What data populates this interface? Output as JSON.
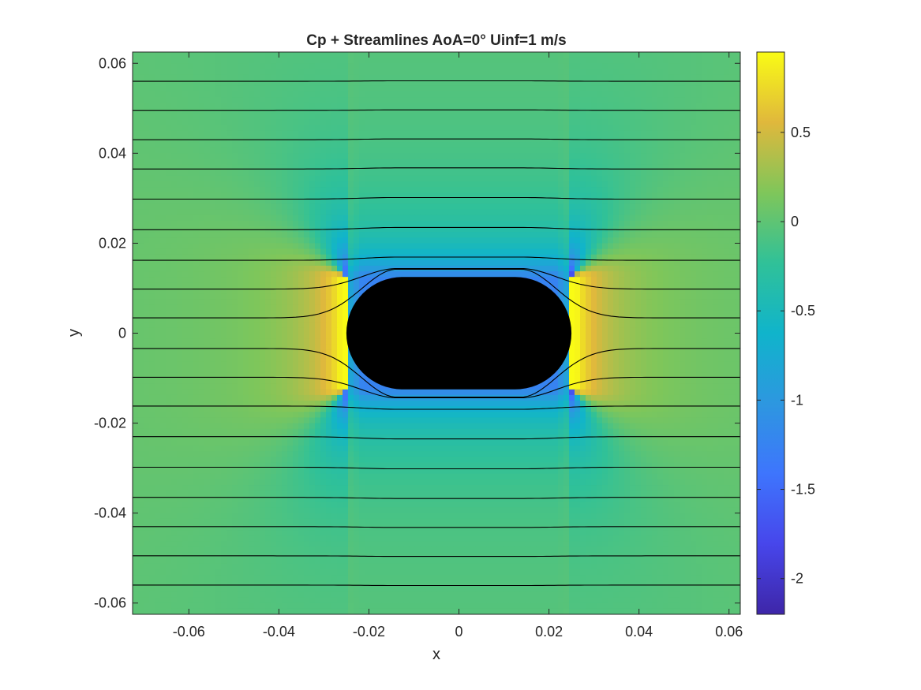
{
  "chart_data": {
    "type": "heatmap",
    "title": "Cp + Streamlines AoA=0° Uinf=1 m/s",
    "xlabel": "x",
    "ylabel": "y",
    "xlim": [
      -0.0725,
      0.0625
    ],
    "ylim": [
      -0.0625,
      0.0625
    ],
    "x_ticks": [
      -0.06,
      -0.04,
      -0.02,
      0,
      0.02,
      0.04,
      0.06
    ],
    "x_tick_labels": [
      "-0.06",
      "-0.04",
      "-0.02",
      "0",
      "0.02",
      "0.04",
      "0.06"
    ],
    "y_ticks": [
      -0.06,
      -0.04,
      -0.02,
      0,
      0.02,
      0.04,
      0.06
    ],
    "y_tick_labels": [
      "-0.06",
      "-0.04",
      "-0.02",
      "0",
      "0.02",
      "0.04",
      "0.06"
    ],
    "colorbar": {
      "limits": [
        -2.2,
        0.95
      ],
      "ticks": [
        -2,
        -1.5,
        -1,
        -0.5,
        0,
        0.5
      ],
      "tick_labels": [
        "-2",
        "-1.5",
        "-1",
        "-0.5",
        "0",
        "0.5"
      ],
      "colormap": "parula"
    },
    "body": {
      "shape": "rounded-rectangle",
      "x_range": [
        -0.025,
        0.025
      ],
      "y_range": [
        -0.0125,
        0.0125
      ],
      "fill": "#000000"
    },
    "streamlines": {
      "color": "#000000",
      "upstream_y": [
        -0.056,
        -0.0495,
        -0.043,
        -0.0365,
        -0.0298,
        -0.023,
        -0.0162,
        -0.0098,
        -0.0034,
        0.0034,
        0.0098,
        0.0162,
        0.023,
        0.0298,
        0.0365,
        0.043,
        0.0495,
        0.056
      ]
    },
    "grid": false,
    "legend": "none"
  }
}
